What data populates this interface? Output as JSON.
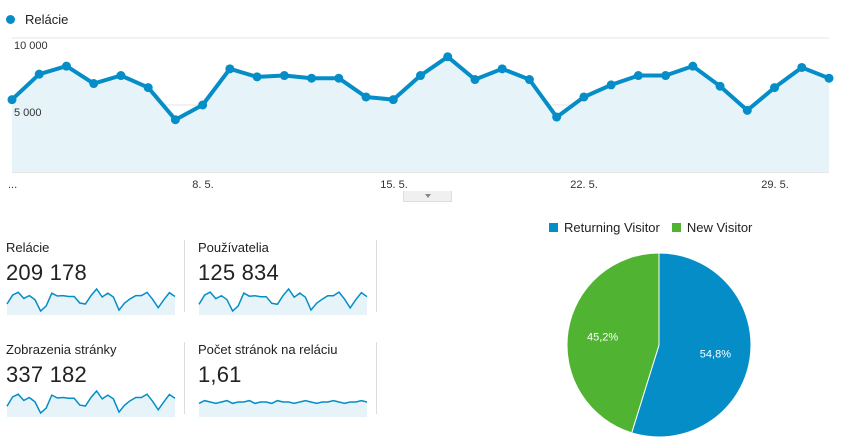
{
  "legend": {
    "series_name": "Relácie",
    "color": "#058dc7"
  },
  "main_chart": {
    "y_labels": [
      "10 000",
      "5 000"
    ],
    "x_labels": [
      "...",
      "8. 5.",
      "15. 5.",
      "22. 5.",
      "29. 5."
    ]
  },
  "chart_data": [
    {
      "type": "area",
      "series": [
        {
          "name": "Relácie",
          "values": [
            5400,
            7300,
            7900,
            6600,
            7200,
            6300,
            3900,
            5000,
            7700,
            7100,
            7200,
            7000,
            7000,
            5600,
            5400,
            7200,
            8600,
            6900,
            7700,
            6900,
            4100,
            5600,
            6500,
            7200,
            7200,
            7900,
            6400,
            4600,
            6300,
            7800,
            7000
          ]
        }
      ],
      "ylim": [
        0,
        10000
      ],
      "grid": true
    },
    {
      "type": "pie",
      "categories": [
        "Returning Visitor",
        "New Visitor"
      ],
      "values": [
        54.8,
        45.2
      ],
      "labels": [
        "54,8%",
        "45,2%"
      ],
      "colors": [
        "#058dc7",
        "#50b432"
      ]
    }
  ],
  "metrics": [
    {
      "label": "Relácie",
      "value": "209 178",
      "spark": [
        5.4,
        7.3,
        7.9,
        6.6,
        7.2,
        6.3,
        3.9,
        5.0,
        7.7,
        7.1,
        7.2,
        7.0,
        7.0,
        5.6,
        5.4,
        7.2,
        8.6,
        6.9,
        7.7,
        6.9,
        4.1,
        5.6,
        6.5,
        7.2,
        7.2,
        7.9,
        6.4,
        4.6,
        6.3,
        7.8,
        7.0
      ]
    },
    {
      "label": "Používatelia",
      "value": "125 834",
      "spark": [
        5.0,
        6.8,
        7.4,
        6.1,
        6.7,
        5.9,
        3.7,
        4.7,
        7.2,
        6.6,
        6.7,
        6.5,
        6.5,
        5.2,
        5.0,
        6.7,
        8.0,
        6.4,
        7.2,
        6.4,
        3.9,
        5.2,
        6.0,
        6.7,
        6.7,
        7.4,
        6.0,
        4.3,
        5.9,
        7.3,
        6.5
      ]
    },
    {
      "label": "Zobrazenia stránky",
      "value": "337 182",
      "spark": [
        8.6,
        11.8,
        12.7,
        10.6,
        11.6,
        10.1,
        6.3,
        8.0,
        12.4,
        11.4,
        11.6,
        11.3,
        11.3,
        9.0,
        8.7,
        11.6,
        13.8,
        11.1,
        12.4,
        11.1,
        6.6,
        9.0,
        10.5,
        11.6,
        11.6,
        12.7,
        10.3,
        7.4,
        10.1,
        12.6,
        11.3
      ]
    },
    {
      "label": "Počet stránok na reláciu",
      "value": "1,61",
      "spark": [
        1.6,
        1.62,
        1.61,
        1.6,
        1.61,
        1.62,
        1.6,
        1.61,
        1.61,
        1.62,
        1.6,
        1.61,
        1.61,
        1.6,
        1.62,
        1.61,
        1.61,
        1.6,
        1.61,
        1.62,
        1.61,
        1.6,
        1.61,
        1.61,
        1.62,
        1.61,
        1.6,
        1.61,
        1.61,
        1.62,
        1.61
      ]
    }
  ],
  "pie_legend": [
    {
      "label": "Returning Visitor",
      "color": "#058dc7"
    },
    {
      "label": "New Visitor",
      "color": "#50b432"
    }
  ]
}
